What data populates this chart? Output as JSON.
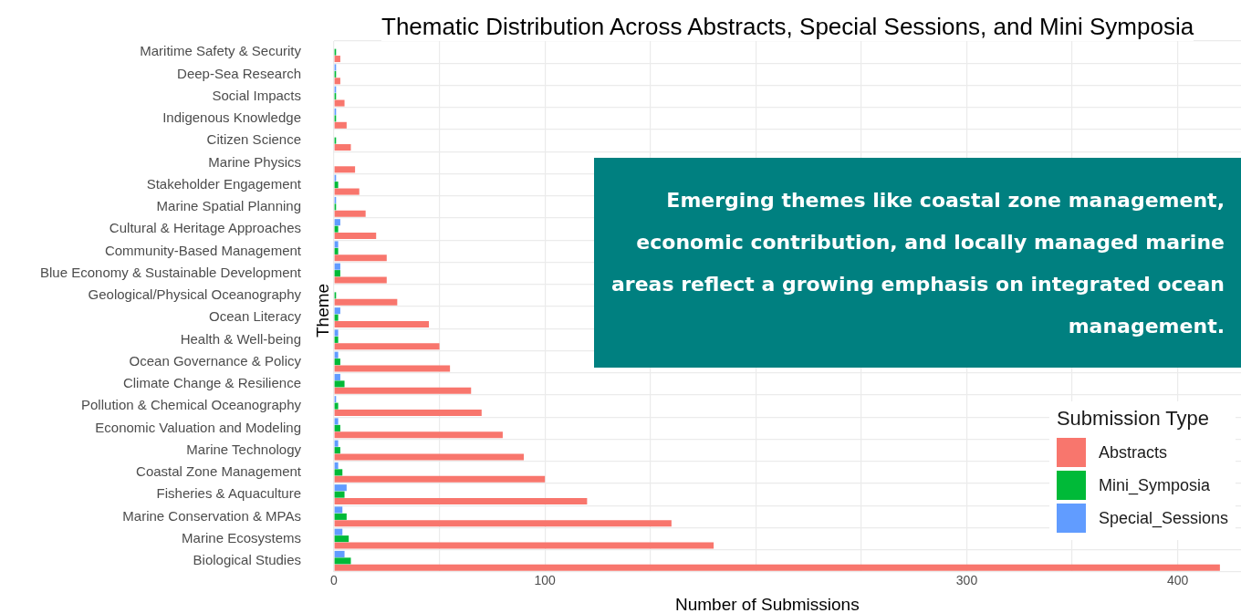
{
  "chart_data": {
    "type": "bar",
    "orientation": "horizontal",
    "title": "Thematic Distribution Across Abstracts, Special Sessions, and Mini Symposia",
    "xlabel": "Number of Submissions",
    "ylabel": "Theme",
    "legend_title": "Submission Type",
    "legend": "bottom right",
    "grid": true,
    "categories": [
      "Maritime Safety & Security",
      "Deep-Sea Research",
      "Social Impacts",
      "Indigenous Knowledge",
      "Citizen Science",
      "Marine Physics",
      "Stakeholder Engagement",
      "Marine Spatial Planning",
      "Cultural & Heritage Approaches",
      "Community-Based Management",
      "Blue Economy & Sustainable Development",
      "Geological/Physical Oceanography",
      "Ocean Literacy",
      "Health & Well-being",
      "Ocean Governance & Policy",
      "Climate Change & Resilience",
      "Pollution & Chemical Oceanography",
      "Economic Valuation and Modeling",
      "Marine Technology",
      "Coastal Zone Management",
      "Fisheries & Aquaculture",
      "Marine Conservation & MPAs",
      "Marine Ecosystems",
      "Biological Studies"
    ],
    "series": [
      {
        "name": "Abstracts",
        "color": "#f8766d",
        "values": [
          3,
          3,
          5,
          6,
          8,
          10,
          12,
          15,
          20,
          25,
          25,
          30,
          45,
          50,
          55,
          65,
          70,
          80,
          90,
          100,
          120,
          160,
          180,
          420
        ]
      },
      {
        "name": "Mini_Symposia",
        "color": "#00ba38",
        "values": [
          1,
          1,
          1,
          1,
          1,
          0,
          2,
          1,
          2,
          2,
          3,
          1,
          2,
          2,
          3,
          5,
          2,
          3,
          3,
          4,
          5,
          6,
          7,
          8
        ]
      },
      {
        "name": "Special_Sessions",
        "color": "#619cff",
        "values": [
          0,
          1,
          1,
          1,
          0,
          0,
          1,
          1,
          3,
          2,
          3,
          0,
          3,
          2,
          2,
          3,
          1,
          2,
          2,
          2,
          6,
          4,
          4,
          5
        ]
      }
    ],
    "xlim": [
      0,
      430
    ],
    "xticks": [
      0,
      {
        "value": 50,
        "label": null
      },
      100,
      {
        "value": 150,
        "label": null
      },
      {
        "value": 200,
        "label": null
      },
      {
        "value": 250,
        "label": null
      },
      300,
      {
        "value": 350,
        "label": null
      },
      400
    ],
    "annotations": [
      "Emerging themes like coastal zone management, economic contribution, and locally managed marine areas reflect a growing emphasis on integrated ocean management."
    ]
  }
}
